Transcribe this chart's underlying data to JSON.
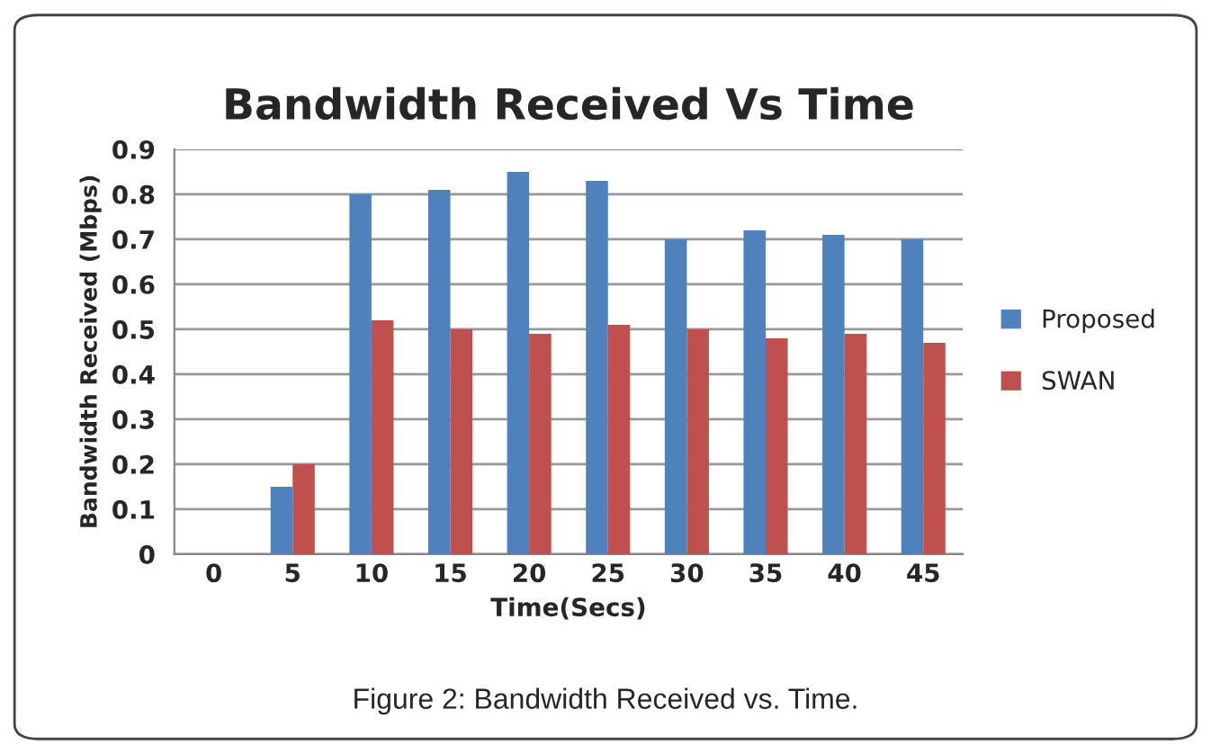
{
  "chart_data": {
    "type": "bar",
    "title": "Bandwidth Received Vs Time",
    "xlabel": "Time(Secs)",
    "ylabel": "Bandwidth Received (Mbps)",
    "categories": [
      "0",
      "5",
      "10",
      "15",
      "20",
      "25",
      "30",
      "35",
      "40",
      "45"
    ],
    "series": [
      {
        "name": "Proposed",
        "color": "#4f81bd",
        "values": [
          0,
          0.15,
          0.8,
          0.81,
          0.85,
          0.83,
          0.7,
          0.72,
          0.71,
          0.7
        ]
      },
      {
        "name": "SWAN",
        "color": "#c0504d",
        "values": [
          0,
          0.2,
          0.52,
          0.5,
          0.49,
          0.51,
          0.5,
          0.48,
          0.49,
          0.47
        ]
      }
    ],
    "ylim": [
      0,
      0.9
    ],
    "yticks": [
      0,
      0.1,
      0.2,
      0.3,
      0.4,
      0.5,
      0.6,
      0.7,
      0.8,
      0.9
    ],
    "grid": "y",
    "legend": "right",
    "annotations": [
      "Figure 2: Bandwidth Received vs. Time."
    ]
  }
}
